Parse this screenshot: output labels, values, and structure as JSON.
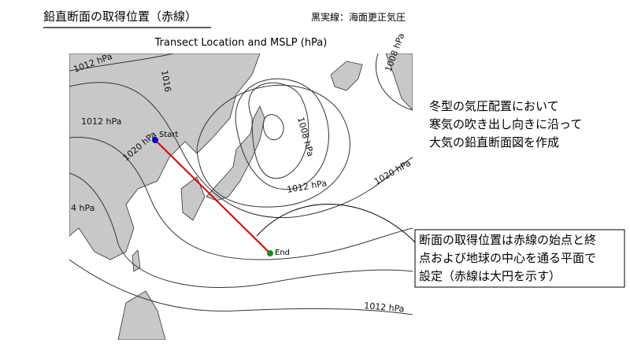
{
  "header": {
    "title": "鉛直断面の取得位置（赤線）",
    "legend_note": "黒実線：海面更正気圧"
  },
  "map": {
    "title": "Transect Location and MSLP (hPa)",
    "contour_labels": [
      "1012 hPa",
      "1016",
      "1012 hPa",
      "1020 hPa",
      "4 hPa",
      "1008 hPa",
      "1012 hPa",
      "1020 hPa",
      "1008 hPa",
      "1012 hPa"
    ],
    "start_label": "Start",
    "end_label": "End"
  },
  "description": [
    "冬型の気圧配置において",
    "寒気の吹き出し向きに沿って",
    "大気の鉛直断面図を作成"
  ],
  "callout": [
    "断面の取得位置は赤線の始点と終",
    "点および地球の中心を通る平面で",
    "設定（赤線は大円を示す）"
  ]
}
